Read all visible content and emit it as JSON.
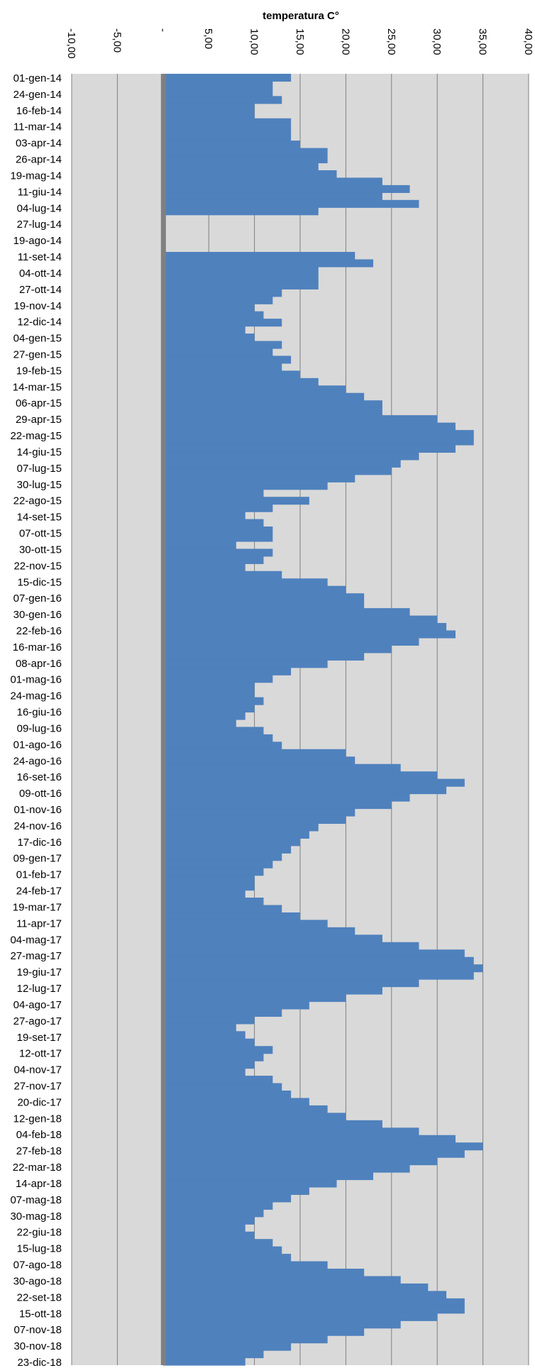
{
  "chart_data": {
    "type": "bar",
    "orientation": "horizontal",
    "title": "temperatura C°",
    "xlabel": "",
    "ylabel": "",
    "xlim": [
      -10,
      40
    ],
    "x_tick_values": [
      -10,
      -5,
      0,
      5,
      10,
      15,
      20,
      25,
      30,
      35,
      40
    ],
    "x_tick_labels": [
      "-10,00",
      "-5,00",
      "-",
      "5,00",
      "10,00",
      "15,00",
      "20,00",
      "25,00",
      "30,00",
      "35,00",
      "40,00"
    ],
    "y_tick_labels": [
      "01-gen-14",
      "24-gen-14",
      "16-feb-14",
      "11-mar-14",
      "03-apr-14",
      "26-apr-14",
      "19-mag-14",
      "11-giu-14",
      "04-lug-14",
      "27-lug-14",
      "19-ago-14",
      "11-set-14",
      "04-ott-14",
      "27-ott-14",
      "19-nov-14",
      "12-dic-14",
      "04-gen-15",
      "27-gen-15",
      "19-feb-15",
      "14-mar-15",
      "06-apr-15",
      "29-apr-15",
      "22-mag-15",
      "14-giu-15",
      "07-lug-15",
      "30-lug-15",
      "22-ago-15",
      "14-set-15",
      "07-ott-15",
      "30-ott-15",
      "22-nov-15",
      "15-dic-15",
      "07-gen-16",
      "30-gen-16",
      "22-feb-16",
      "16-mar-16",
      "08-apr-16",
      "01-mag-16",
      "24-mag-16",
      "16-giu-16",
      "09-lug-16",
      "01-ago-16",
      "24-ago-16",
      "16-set-16",
      "09-ott-16",
      "01-nov-16",
      "24-nov-16",
      "17-dic-16",
      "09-gen-17",
      "01-feb-17",
      "24-feb-17",
      "19-mar-17",
      "11-apr-17",
      "04-mag-17",
      "27-mag-17",
      "19-giu-17",
      "12-lug-17",
      "04-ago-17",
      "27-ago-17",
      "19-set-17",
      "12-ott-17",
      "04-nov-17",
      "27-nov-17",
      "20-dic-17",
      "12-gen-18",
      "04-feb-18",
      "27-feb-18",
      "22-mar-18",
      "14-apr-18",
      "07-mag-18",
      "30-mag-18",
      "22-giu-18",
      "15-lug-18",
      "07-ago-18",
      "30-ago-18",
      "22-set-18",
      "15-ott-18",
      "07-nov-18",
      "30-nov-18",
      "23-dic-18"
    ],
    "grid": true,
    "legend": "none",
    "series": [
      {
        "values": [
          14,
          12,
          12,
          13,
          10,
          10,
          14,
          14,
          14,
          15,
          18,
          18,
          17,
          19,
          24,
          27,
          24,
          28,
          17,
          0,
          0,
          0,
          0,
          0,
          21,
          23,
          17,
          17,
          17,
          13,
          12,
          10,
          11,
          13,
          9,
          10,
          13,
          12,
          14,
          13,
          15,
          17,
          20,
          22,
          24,
          24,
          30,
          32,
          34,
          34,
          32,
          28,
          26,
          25,
          21,
          18,
          11,
          16,
          12,
          9,
          11,
          12,
          12,
          8,
          12,
          11,
          9,
          13,
          18,
          20,
          22,
          22,
          27,
          30,
          31,
          32,
          28,
          25,
          22,
          18,
          14,
          12,
          10,
          10,
          11,
          10,
          9,
          8,
          11,
          12,
          13,
          20,
          21,
          26,
          30,
          33,
          31,
          27,
          25,
          21,
          20,
          17,
          16,
          15,
          14,
          13,
          12,
          11,
          10,
          10,
          9,
          11,
          13,
          15,
          18,
          21,
          24,
          28,
          33,
          34,
          35,
          34,
          28,
          24,
          20,
          16,
          13,
          10,
          8,
          9,
          10,
          12,
          11,
          10,
          9,
          12,
          13,
          14,
          16,
          18,
          20,
          24,
          28,
          32,
          35,
          33,
          30,
          27,
          23,
          19,
          16,
          14,
          12,
          11,
          10,
          9,
          10,
          12,
          13,
          14,
          18,
          22,
          26,
          29,
          31,
          33,
          33,
          30,
          26,
          22,
          18,
          14,
          11,
          9
        ]
      }
    ],
    "colors": {
      "bar": "#4F81BD",
      "zero_axis": "#808080",
      "plot_background": "#D9D9D9",
      "gridline": "#7F7F7F"
    }
  }
}
